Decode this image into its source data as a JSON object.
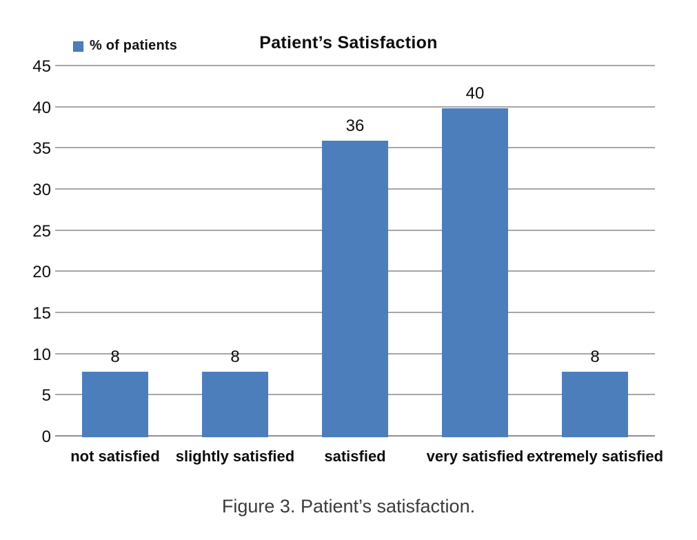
{
  "legend": {
    "label": "% of patients",
    "swatch_icon": "legend-square-marker"
  },
  "title": "Patient’s Satisfaction",
  "caption": "Figure 3. Patient’s satisfaction.",
  "colors": {
    "bar": "#4d7ebc",
    "bar_border": "#3e6ca8",
    "gridline": "#a6a6a6",
    "axis_line": "#8f8f8f",
    "caption_text": "#3b3b3b"
  },
  "chart_data": {
    "type": "bar",
    "title": "Patient’s Satisfaction",
    "legend_entries": [
      "% of patients"
    ],
    "legend_position": "top-left",
    "categories": [
      "not satisfied",
      "slightly satisfied",
      "satisfied",
      "very satisfied",
      "extremely satisfied"
    ],
    "series": [
      {
        "name": "% of patients",
        "values": [
          8,
          8,
          36,
          40,
          8
        ]
      }
    ],
    "data_labels": [
      "8",
      "8",
      "36",
      "40",
      "8"
    ],
    "xlabel": "",
    "ylabel": "",
    "ylim": [
      0,
      45
    ],
    "yticks": [
      0,
      5,
      10,
      15,
      20,
      25,
      30,
      35,
      40,
      45
    ],
    "grid": "horizontal"
  }
}
